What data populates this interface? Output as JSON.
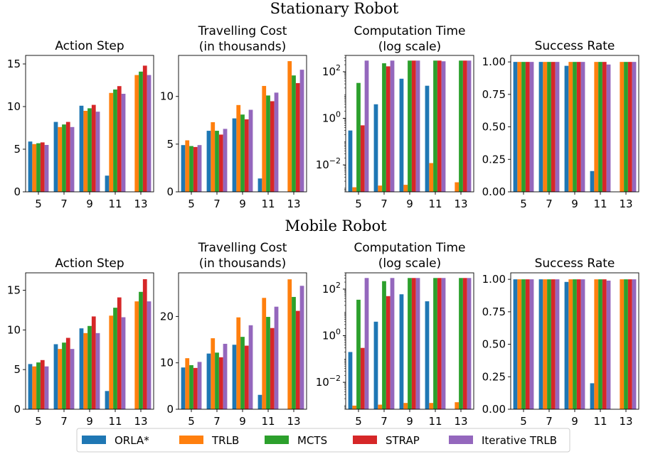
{
  "figure": {
    "row_titles": [
      "Stationary Robot",
      "Mobile Robot"
    ],
    "legend": [
      {
        "name": "ORLA*",
        "color": "#1f77b4"
      },
      {
        "name": "TRLB",
        "color": "#ff7f0e"
      },
      {
        "name": "MCTS",
        "color": "#2ca02c"
      },
      {
        "name": "STRAP",
        "color": "#d62728"
      },
      {
        "name": "Iterative TRLB",
        "color": "#9467bd"
      }
    ]
  },
  "chart_data": [
    {
      "row": "Stationary Robot",
      "type": "bar",
      "title": "Action Step",
      "categories": [
        "5",
        "7",
        "9",
        "11",
        "13"
      ],
      "ylim": [
        0,
        16
      ],
      "yticks": [
        0,
        5,
        10,
        15
      ],
      "yticklabels": [
        "0",
        "5",
        "10",
        "15"
      ],
      "series": [
        {
          "name": "ORLA*",
          "values": [
            5.9,
            8.2,
            10.1,
            1.9,
            null
          ]
        },
        {
          "name": "TRLB",
          "values": [
            5.6,
            7.6,
            9.5,
            11.6,
            13.7
          ]
        },
        {
          "name": "MCTS",
          "values": [
            5.7,
            7.9,
            9.8,
            12.0,
            14.1
          ]
        },
        {
          "name": "STRAP",
          "values": [
            5.8,
            8.2,
            10.2,
            12.4,
            14.8
          ]
        },
        {
          "name": "Iterative TRLB",
          "values": [
            5.5,
            7.6,
            9.4,
            11.5,
            13.7
          ]
        }
      ]
    },
    {
      "row": "Stationary Robot",
      "type": "bar",
      "title": "Travelling Cost\n(in thousands)",
      "categories": [
        "5",
        "7",
        "9",
        "11",
        "13"
      ],
      "ylim": [
        0,
        14.3
      ],
      "yticks": [
        0,
        5,
        10
      ],
      "yticklabels": [
        "0",
        "5",
        "10"
      ],
      "series": [
        {
          "name": "ORLA*",
          "values": [
            4.9,
            6.4,
            7.7,
            1.4,
            null
          ]
        },
        {
          "name": "TRLB",
          "values": [
            5.4,
            7.3,
            9.1,
            11.1,
            13.7
          ]
        },
        {
          "name": "MCTS",
          "values": [
            4.8,
            6.4,
            8.1,
            10.1,
            12.2
          ]
        },
        {
          "name": "STRAP",
          "values": [
            4.7,
            6.0,
            7.6,
            9.5,
            11.4
          ]
        },
        {
          "name": "Iterative TRLB",
          "values": [
            4.9,
            6.6,
            8.6,
            10.4,
            12.8
          ]
        }
      ]
    },
    {
      "row": "Stationary Robot",
      "type": "bar",
      "title": "Computation Time\n(log scale)",
      "scale": "log",
      "categories": [
        "5",
        "7",
        "9",
        "11",
        "13"
      ],
      "ylim": [
        0.0007,
        500
      ],
      "yticks": [
        0.01,
        1,
        100
      ],
      "yticklabels": [
        "10^-2",
        "10^0",
        "10^2"
      ],
      "series": [
        {
          "name": "ORLA*",
          "values": [
            0.3,
            4,
            50,
            25,
            null
          ]
        },
        {
          "name": "TRLB",
          "values": [
            0.0011,
            0.0013,
            0.0014,
            0.012,
            0.0018
          ]
        },
        {
          "name": "MCTS",
          "values": [
            33,
            230,
            300,
            300,
            300
          ]
        },
        {
          "name": "STRAP",
          "values": [
            0.5,
            170,
            300,
            300,
            300
          ]
        },
        {
          "name": "Iterative TRLB",
          "values": [
            300,
            300,
            300,
            280,
            300
          ]
        }
      ]
    },
    {
      "row": "Stationary Robot",
      "type": "bar",
      "title": "Success Rate",
      "categories": [
        "5",
        "7",
        "9",
        "11",
        "13"
      ],
      "ylim": [
        0,
        1.05
      ],
      "yticks": [
        0,
        0.25,
        0.5,
        0.75,
        1.0
      ],
      "yticklabels": [
        "0.00",
        "0.25",
        "0.50",
        "0.75",
        "1.00"
      ],
      "series": [
        {
          "name": "ORLA*",
          "values": [
            1.0,
            1.0,
            0.97,
            0.16,
            null
          ]
        },
        {
          "name": "TRLB",
          "values": [
            1.0,
            1.0,
            1.0,
            1.0,
            1.0
          ]
        },
        {
          "name": "MCTS",
          "values": [
            1.0,
            1.0,
            1.0,
            1.0,
            1.0
          ]
        },
        {
          "name": "STRAP",
          "values": [
            1.0,
            1.0,
            1.0,
            1.0,
            1.0
          ]
        },
        {
          "name": "Iterative TRLB",
          "values": [
            1.0,
            1.0,
            1.0,
            0.98,
            1.0
          ]
        }
      ]
    },
    {
      "row": "Mobile Robot",
      "type": "bar",
      "title": "Action Step",
      "categories": [
        "5",
        "7",
        "9",
        "11",
        "13"
      ],
      "ylim": [
        0,
        17.2
      ],
      "yticks": [
        0,
        5,
        10,
        15
      ],
      "yticklabels": [
        "0",
        "5",
        "10",
        "15"
      ],
      "series": [
        {
          "name": "ORLA*",
          "values": [
            5.7,
            8.2,
            10.2,
            2.3,
            null
          ]
        },
        {
          "name": "TRLB",
          "values": [
            5.4,
            7.6,
            9.6,
            11.8,
            13.6
          ]
        },
        {
          "name": "MCTS",
          "values": [
            5.9,
            8.4,
            10.5,
            12.8,
            14.8
          ]
        },
        {
          "name": "STRAP",
          "values": [
            6.2,
            9.0,
            11.7,
            14.1,
            16.4
          ]
        },
        {
          "name": "Iterative TRLB",
          "values": [
            5.4,
            7.6,
            9.6,
            11.6,
            13.6
          ]
        }
      ]
    },
    {
      "row": "Mobile Robot",
      "type": "bar",
      "title": "Travelling Cost\n(in thousands)",
      "categories": [
        "5",
        "7",
        "9",
        "11",
        "13"
      ],
      "ylim": [
        0,
        29.4
      ],
      "yticks": [
        0,
        10,
        20
      ],
      "yticklabels": [
        "0",
        "10",
        "20"
      ],
      "series": [
        {
          "name": "ORLA*",
          "values": [
            9.0,
            12.0,
            13.9,
            3.1,
            null
          ]
        },
        {
          "name": "TRLB",
          "values": [
            11.0,
            15.3,
            19.8,
            24.0,
            28.0
          ]
        },
        {
          "name": "MCTS",
          "values": [
            9.5,
            12.2,
            15.6,
            19.9,
            24.2
          ]
        },
        {
          "name": "STRAP",
          "values": [
            8.9,
            11.2,
            13.7,
            17.5,
            21.2
          ]
        },
        {
          "name": "Iterative TRLB",
          "values": [
            10.2,
            14.1,
            18.1,
            22.1,
            26.6
          ]
        }
      ]
    },
    {
      "row": "Mobile Robot",
      "type": "bar",
      "title": "Computation Time\n(log scale)",
      "scale": "log",
      "categories": [
        "5",
        "7",
        "9",
        "11",
        "13"
      ],
      "ylim": [
        0.0007,
        500
      ],
      "yticks": [
        0.01,
        1,
        100
      ],
      "yticklabels": [
        "10^-2",
        "10^0",
        "10^2"
      ],
      "series": [
        {
          "name": "ORLA*",
          "values": [
            0.2,
            4,
            60,
            30,
            null
          ]
        },
        {
          "name": "TRLB",
          "values": [
            0.001,
            0.0011,
            0.0013,
            0.0013,
            0.0014
          ]
        },
        {
          "name": "MCTS",
          "values": [
            35,
            220,
            300,
            300,
            300
          ]
        },
        {
          "name": "STRAP",
          "values": [
            0.3,
            50,
            300,
            300,
            300
          ]
        },
        {
          "name": "Iterative TRLB",
          "values": [
            300,
            300,
            300,
            300,
            300
          ]
        }
      ]
    },
    {
      "row": "Mobile Robot",
      "type": "bar",
      "title": "Success Rate",
      "categories": [
        "5",
        "7",
        "9",
        "11",
        "13"
      ],
      "ylim": [
        0,
        1.05
      ],
      "yticks": [
        0,
        0.25,
        0.5,
        0.75,
        1.0
      ],
      "yticklabels": [
        "0.00",
        "0.25",
        "0.50",
        "0.75",
        "1.00"
      ],
      "series": [
        {
          "name": "ORLA*",
          "values": [
            1.0,
            1.0,
            0.98,
            0.2,
            null
          ]
        },
        {
          "name": "TRLB",
          "values": [
            1.0,
            1.0,
            1.0,
            1.0,
            1.0
          ]
        },
        {
          "name": "MCTS",
          "values": [
            1.0,
            1.0,
            1.0,
            1.0,
            1.0
          ]
        },
        {
          "name": "STRAP",
          "values": [
            1.0,
            1.0,
            1.0,
            1.0,
            1.0
          ]
        },
        {
          "name": "Iterative TRLB",
          "values": [
            1.0,
            1.0,
            1.0,
            0.99,
            1.0
          ]
        }
      ]
    }
  ]
}
